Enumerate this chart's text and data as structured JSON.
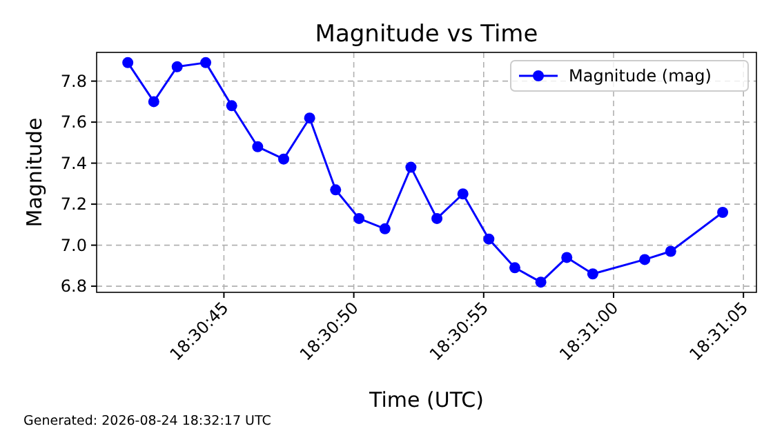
{
  "chart_data": {
    "type": "line",
    "title": "Magnitude vs Time",
    "xlabel": "Time (UTC)",
    "ylabel": "Magnitude",
    "x": [
      "2026-08-24T18:30:41.3",
      "2026-08-24T18:30:42.3",
      "2026-08-24T18:30:43.2",
      "2026-08-24T18:30:44.3",
      "2026-08-24T18:30:45.3",
      "2026-08-24T18:30:46.3",
      "2026-08-24T18:30:47.3",
      "2026-08-24T18:30:48.3",
      "2026-08-24T18:30:49.3",
      "2026-08-24T18:30:50.2",
      "2026-08-24T18:30:51.2",
      "2026-08-24T18:30:52.2",
      "2026-08-24T18:30:53.2",
      "2026-08-24T18:30:54.2",
      "2026-08-24T18:30:55.2",
      "2026-08-24T18:30:56.2",
      "2026-08-24T18:30:57.2",
      "2026-08-24T18:30:58.2",
      "2026-08-24T18:30:59.2",
      "2026-08-24T18:31:01.2",
      "2026-08-24T18:31:02.2",
      "2026-08-24T18:31:04.2"
    ],
    "series": [
      {
        "name": "Magnitude (mag)",
        "color": "#0000ff",
        "values": [
          7.89,
          7.7,
          7.87,
          7.89,
          7.68,
          7.48,
          7.42,
          7.62,
          7.27,
          7.13,
          7.08,
          7.38,
          7.13,
          7.25,
          7.03,
          6.89,
          6.82,
          6.94,
          6.86,
          6.93,
          6.97,
          7.16
        ]
      }
    ],
    "xlim": [
      "2026-08-24T18:30:40.1",
      "2026-08-24T18:31:05.5"
    ],
    "xticks": [
      {
        "value": "2026-08-24T18:30:45",
        "label": "18:30:45"
      },
      {
        "value": "2026-08-24T18:30:50",
        "label": "18:30:50"
      },
      {
        "value": "2026-08-24T18:30:55",
        "label": "18:30:55"
      },
      {
        "value": "2026-08-24T18:31:00",
        "label": "18:31:00"
      },
      {
        "value": "2026-08-24T18:31:05",
        "label": "18:31:05"
      }
    ],
    "ylim": [
      6.77,
      7.94
    ],
    "yticks": [
      {
        "value": 6.8,
        "label": "6.8"
      },
      {
        "value": 7.0,
        "label": "7.0"
      },
      {
        "value": 7.2,
        "label": "7.2"
      },
      {
        "value": 7.4,
        "label": "7.4"
      },
      {
        "value": 7.6,
        "label": "7.6"
      },
      {
        "value": 7.8,
        "label": "7.8"
      }
    ],
    "grid": true,
    "legend": "top right",
    "marker": "circle",
    "line_style": "solid",
    "annotations": [
      "Generated: 2026-08-24 18:32:17 UTC"
    ]
  }
}
